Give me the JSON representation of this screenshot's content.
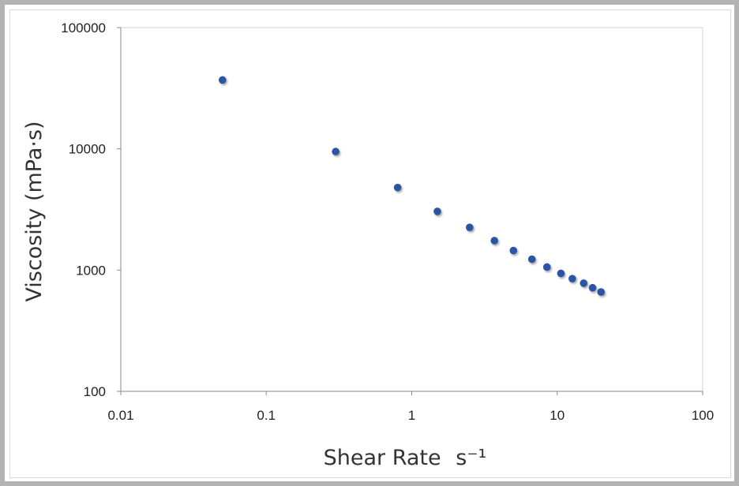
{
  "chart_data": {
    "type": "scatter",
    "title": "",
    "xlabel": "Shear Rate",
    "xlabel_unit": "s⁻¹",
    "ylabel": "Viscosity (mPa·s)",
    "x_scale": "log",
    "y_scale": "log",
    "xlim": [
      0.01,
      100
    ],
    "ylim": [
      100,
      100000
    ],
    "x_ticks": [
      "0.01",
      "0.1",
      "1",
      "10",
      "100"
    ],
    "y_ticks": [
      "100",
      "1000",
      "10000",
      "100000"
    ],
    "grid": false,
    "legend": "none",
    "marker_color": "#2a55a5",
    "points": [
      {
        "x": 0.05,
        "y": 37000
      },
      {
        "x": 0.3,
        "y": 9500
      },
      {
        "x": 0.8,
        "y": 4800
      },
      {
        "x": 1.5,
        "y": 3050
      },
      {
        "x": 2.5,
        "y": 2250
      },
      {
        "x": 3.7,
        "y": 1750
      },
      {
        "x": 5.0,
        "y": 1450
      },
      {
        "x": 6.7,
        "y": 1230
      },
      {
        "x": 8.5,
        "y": 1060
      },
      {
        "x": 10.6,
        "y": 940
      },
      {
        "x": 12.7,
        "y": 850
      },
      {
        "x": 15.2,
        "y": 780
      },
      {
        "x": 17.5,
        "y": 715
      },
      {
        "x": 20.0,
        "y": 660
      }
    ]
  }
}
